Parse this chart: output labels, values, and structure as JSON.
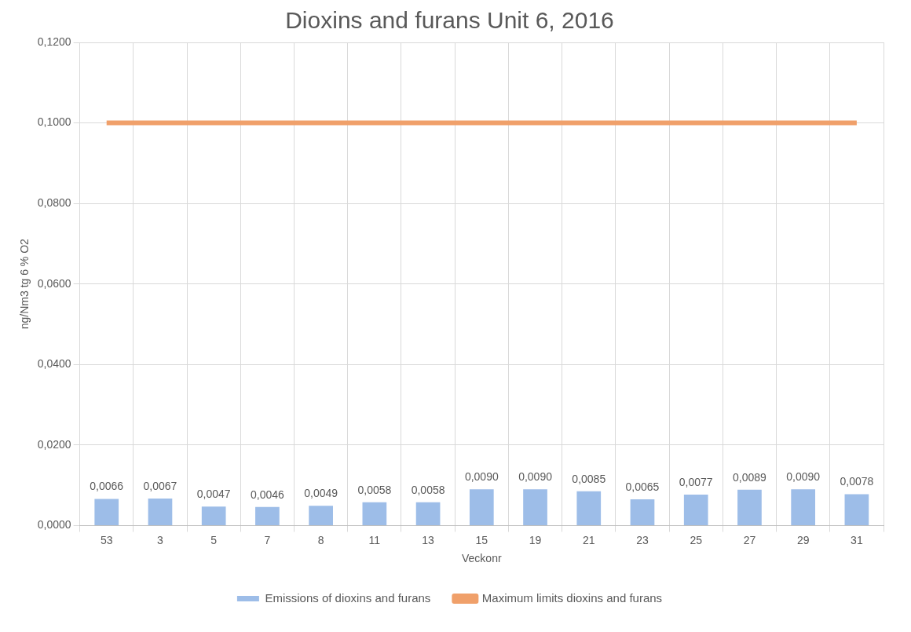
{
  "chart_data": {
    "type": "bar",
    "title": "Dioxins and furans Unit 6, 2016",
    "xlabel": "Veckonr",
    "ylabel": "ng/Nm3 tg 6 % O2",
    "categories": [
      "53",
      "3",
      "5",
      "7",
      "8",
      "11",
      "13",
      "15",
      "19",
      "21",
      "23",
      "25",
      "27",
      "29",
      "31"
    ],
    "series": [
      {
        "name": "Emissions of dioxins and furans",
        "color": "#9dbde8",
        "values": [
          0.0066,
          0.0067,
          0.0047,
          0.0046,
          0.0049,
          0.0058,
          0.0058,
          0.009,
          0.009,
          0.0085,
          0.0065,
          0.0077,
          0.0089,
          0.009,
          0.0078
        ],
        "value_labels": [
          "0,0066",
          "0,0067",
          "0,0047",
          "0,0046",
          "0,0049",
          "0,0058",
          "0,0058",
          "0,0090",
          "0,0090",
          "0,0085",
          "0,0065",
          "0,0077",
          "0,0089",
          "0,0090",
          "0,0078"
        ]
      },
      {
        "name": "Maximum limits dioxins and furans",
        "type": "line",
        "color": "#f0a06a",
        "values": [
          0.1,
          0.1,
          0.1,
          0.1,
          0.1,
          0.1,
          0.1,
          0.1,
          0.1,
          0.1,
          0.1,
          0.1,
          0.1,
          0.1,
          0.1
        ]
      }
    ],
    "ylim": [
      0,
      0.12
    ],
    "yticks": [
      {
        "value": 0,
        "label": "0,0000"
      },
      {
        "value": 0.02,
        "label": "0,0200"
      },
      {
        "value": 0.04,
        "label": "0,0400"
      },
      {
        "value": 0.06,
        "label": "0,0600"
      },
      {
        "value": 0.08,
        "label": "0,0800"
      },
      {
        "value": 0.1,
        "label": "0,1000"
      },
      {
        "value": 0.12,
        "label": "0,1200"
      }
    ],
    "grid": true,
    "legend": "bottom",
    "marker": "none"
  }
}
